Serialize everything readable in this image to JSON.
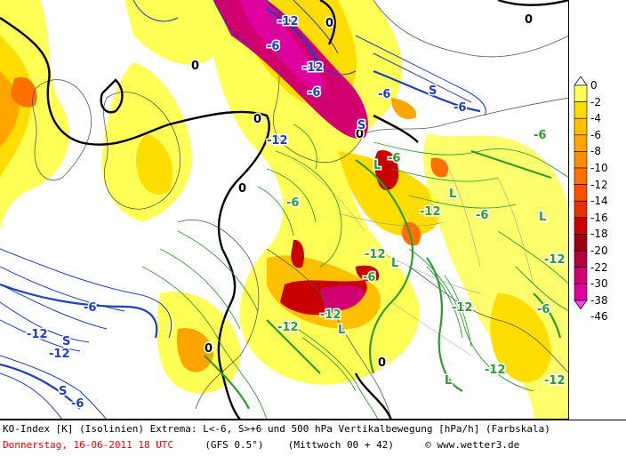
{
  "map": {
    "center_markers": [
      {
        "type": "L",
        "color": "#2e9c2e"
      },
      {
        "type": "S",
        "color": "#1f3fbf"
      }
    ],
    "labels_blue": [
      "-12",
      "-6",
      "-12",
      "-6",
      "-6",
      "-12",
      "-12",
      "-6",
      "-6",
      "-6",
      "-12"
    ],
    "labels_black": [
      "0",
      "0",
      "0",
      "0",
      "0",
      "0",
      "0",
      "0"
    ],
    "labels_green": [
      "-6",
      "-12",
      "-12",
      "-6",
      "-12",
      "-6",
      "-12",
      "-12",
      "-6",
      "-12",
      "-6",
      "-12",
      "-6",
      "-12"
    ],
    "marker_L": "L",
    "marker_S": "S"
  },
  "legend": {
    "ticks": [
      "0",
      "-2",
      "-4",
      "-6",
      "-8",
      "-10",
      "-12",
      "-14",
      "-16",
      "-18",
      "-20",
      "-22",
      "-30",
      "-38",
      "-46"
    ],
    "colors": [
      "#ffffff",
      "#ffff55",
      "#ffdd00",
      "#ffc000",
      "#ffa500",
      "#ff8c00",
      "#ff7000",
      "#ff5000",
      "#e83000",
      "#c80000",
      "#a00010",
      "#b00040",
      "#d00070",
      "#e000a0",
      "#ff40ff"
    ]
  },
  "footer": {
    "line1": "KO-Index [K] (Isolinien) Extrema: L<-6, S>+6 und 500 hPa Vertikalbewegung [hPa/h] (Farbskala)",
    "date": "Donnerstag, 16-06-2011  18 UTC",
    "model": "(GFS 0.5°)",
    "run": "(Mittwoch 00 + 42)",
    "credit": "© www.wetter3.de"
  }
}
